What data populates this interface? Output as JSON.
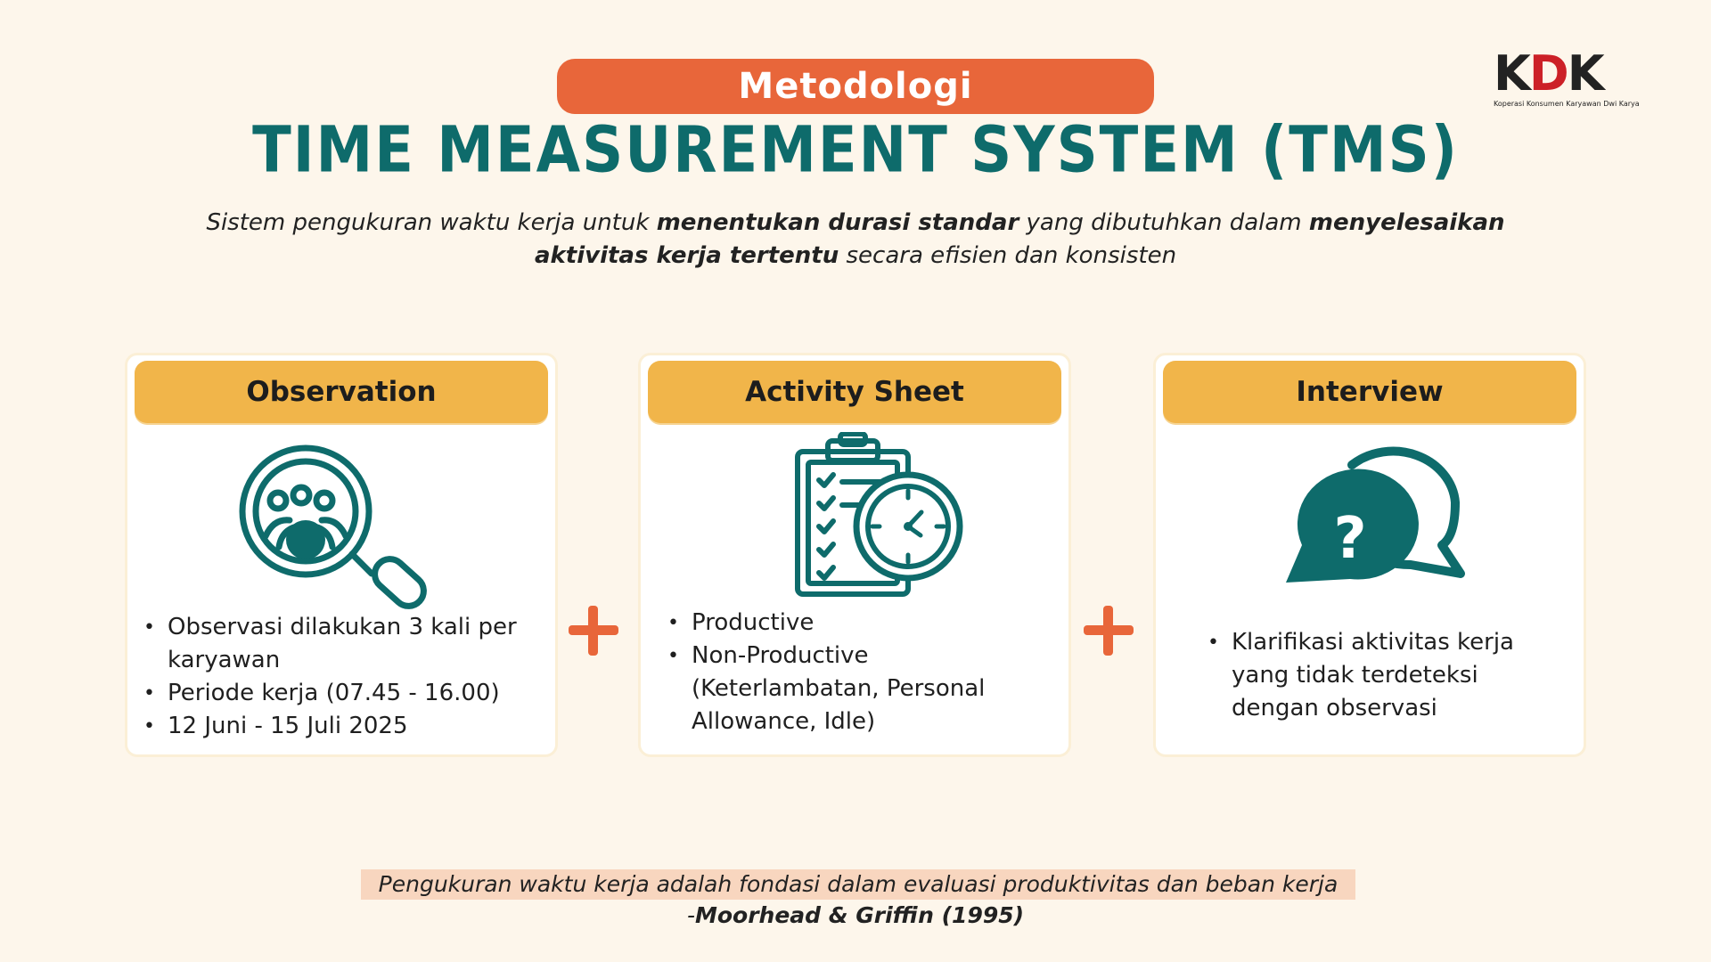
{
  "header": {
    "tag": "Metodologi",
    "title": "TIME MEASUREMENT SYSTEM (TMS)"
  },
  "logo": {
    "letters": [
      "K",
      "D",
      "K"
    ],
    "subtitle": "Koperasi Konsumen Karyawan Dwi Karya"
  },
  "description": {
    "part1": "Sistem pengukuran waktu kerja untuk ",
    "bold1": "menentukan durasi standar",
    "part2": " yang dibutuhkan dalam ",
    "bold2": "menyelesaikan aktivitas kerja tertentu",
    "part3": " secara efisien dan konsisten"
  },
  "cards": [
    {
      "title": "Observation",
      "icon": "magnifier-people-icon",
      "bullets": [
        "Observasi dilakukan 3 kali per karyawan",
        "Periode kerja (07.45 - 16.00)",
        "12 Juni - 15 Juli 2025"
      ]
    },
    {
      "title": "Activity Sheet",
      "icon": "clipboard-clock-icon",
      "bullets": [
        "Productive",
        "Non-Productive (Keterlambatan, Personal Allowance, Idle)"
      ]
    },
    {
      "title": "Interview",
      "icon": "chat-question-icon",
      "bullets": [
        "Klarifikasi aktivitas kerja yang tidak terdeteksi dengan observasi"
      ]
    }
  ],
  "quote": {
    "text": "Pengukuran waktu kerja adalah fondasi dalam evaluasi produktivitas dan beban kerja",
    "dash": "-",
    "author": "Moorhead & Griffin (1995)"
  },
  "colors": {
    "background": "#fdf6eb",
    "accent_orange": "#e8663a",
    "teal": "#0e6b6b",
    "card_header": "#f1b54a",
    "quote_highlight": "#f8d6bf"
  }
}
